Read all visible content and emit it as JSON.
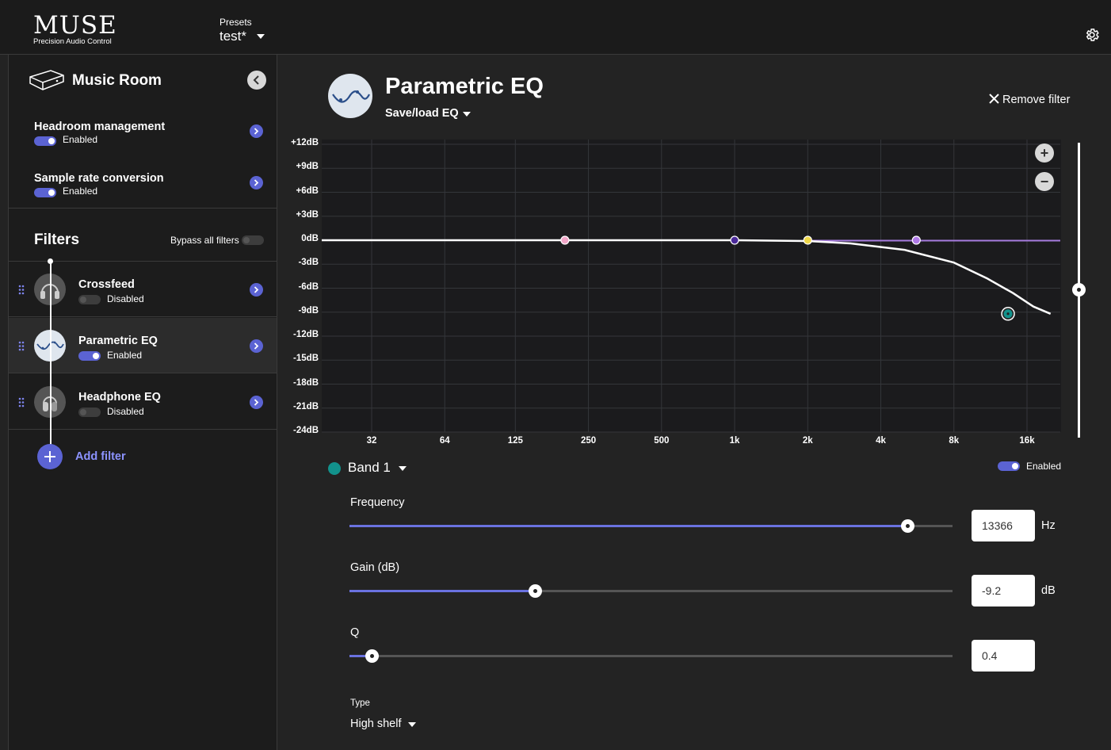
{
  "header": {
    "logo_title": "MUSE",
    "logo_subtitle": "Precision Audio Control",
    "presets_label": "Presets",
    "presets_value": "test*"
  },
  "sidebar": {
    "device_name": "Music Room",
    "settings": [
      {
        "title": "Headroom management",
        "status": "Enabled",
        "enabled": true
      },
      {
        "title": "Sample rate conversion",
        "status": "Enabled",
        "enabled": true
      }
    ],
    "filters_title": "Filters",
    "bypass_label": "Bypass all filters",
    "bypass_enabled": false,
    "filters": [
      {
        "name": "Crossfeed",
        "status": "Disabled",
        "enabled": false,
        "icon": "headphones-icon"
      },
      {
        "name": "Parametric EQ",
        "status": "Enabled",
        "enabled": true,
        "icon": "eq-wave-icon",
        "active": true
      },
      {
        "name": "Headphone EQ",
        "status": "Disabled",
        "enabled": false,
        "icon": "headphone-icon"
      }
    ],
    "add_filter_label": "Add filter"
  },
  "main": {
    "title": "Parametric EQ",
    "save_load_label": "Save/load EQ",
    "remove_filter_label": "Remove filter",
    "band_label": "Band 1",
    "band_enabled_label": "Enabled",
    "band_enabled": true,
    "params": {
      "frequency": {
        "label": "Frequency",
        "value": "13366",
        "unit": "Hz",
        "fraction": 0.925
      },
      "gain": {
        "label": "Gain (dB)",
        "value": "-9.2",
        "unit": "dB",
        "fraction": 0.307
      },
      "q": {
        "label": "Q",
        "value": "0.4",
        "unit": "",
        "fraction": 0.037
      }
    },
    "type_label": "Type",
    "type_value": "High shelf"
  },
  "chart_data": {
    "type": "line",
    "y_ticks": [
      "+12dB",
      "+9dB",
      "+6dB",
      "+3dB",
      "0dB",
      "-3dB",
      "-6dB",
      "-9dB",
      "-12dB",
      "-15dB",
      "-18dB",
      "-21dB",
      "-24dB"
    ],
    "x_ticks": [
      "32",
      "64",
      "125",
      "250",
      "500",
      "1k",
      "2k",
      "4k",
      "8k",
      "16k"
    ],
    "ylim": [
      -24,
      12
    ],
    "xlim": [
      20,
      22000
    ],
    "x_scale": "log",
    "grid": true,
    "band_points": [
      {
        "freq": 200,
        "gain": 0,
        "color": "#f2a6c8"
      },
      {
        "freq": 1000,
        "gain": 0,
        "color": "#4b2a9a"
      },
      {
        "freq": 2000,
        "gain": 0,
        "color": "#f0d84a"
      },
      {
        "freq": 5600,
        "gain": 0,
        "color": "#b07ae8"
      },
      {
        "freq": 13366,
        "gain": -9.2,
        "color": "#12928c"
      }
    ],
    "response_curve": [
      {
        "f": 20,
        "g": 0
      },
      {
        "f": 500,
        "g": 0
      },
      {
        "f": 1000,
        "g": 0
      },
      {
        "f": 2000,
        "g": -0.1
      },
      {
        "f": 3000,
        "g": -0.4
      },
      {
        "f": 5000,
        "g": -1.2
      },
      {
        "f": 8000,
        "g": -2.8
      },
      {
        "f": 11000,
        "g": -4.8
      },
      {
        "f": 14000,
        "g": -6.6
      },
      {
        "f": 17000,
        "g": -8.3
      },
      {
        "f": 20000,
        "g": -9.2
      }
    ],
    "zoom_level": 0.53
  }
}
